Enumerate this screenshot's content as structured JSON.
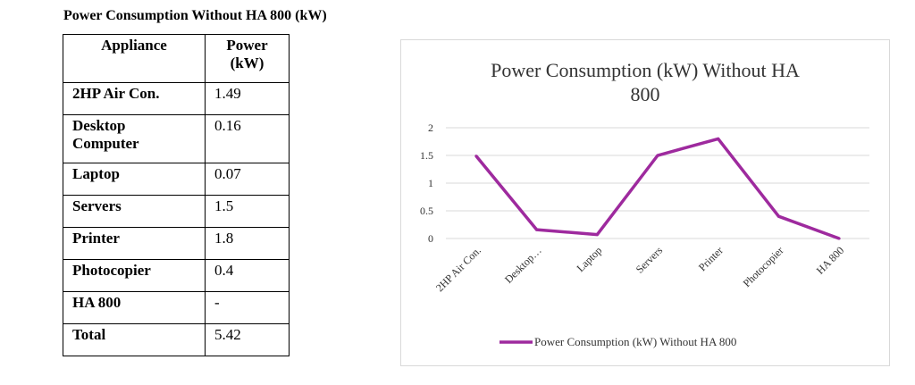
{
  "heading": "Power Consumption Without HA 800 (kW)",
  "table": {
    "headers": [
      "Appliance",
      "Power (kW)"
    ],
    "rows": [
      {
        "name": "2HP Air Con.",
        "value": "1.49"
      },
      {
        "name": "Desktop Computer",
        "value": "0.16"
      },
      {
        "name": "Laptop",
        "value": "0.07"
      },
      {
        "name": "Servers",
        "value": "1.5"
      },
      {
        "name": "Printer",
        "value": "1.8"
      },
      {
        "name": "Photocopier",
        "value": "0.4"
      },
      {
        "name": "HA 800",
        "value": "-"
      }
    ],
    "total_label": "Total",
    "total_value": "5.42"
  },
  "chart_data": {
    "type": "line",
    "title": "Power Consumption (kW) Without HA 800",
    "categories": [
      "2HP Air Con.",
      "Desktop…",
      "Laptop",
      "Servers",
      "Printer",
      "Photocopier",
      "HA 800"
    ],
    "series": [
      {
        "name": "Power Consumption (kW) Without HA 800",
        "values": [
          1.49,
          0.16,
          0.07,
          1.5,
          1.8,
          0.4,
          0
        ],
        "color": "#9e2a9e"
      }
    ],
    "yticks": [
      "0",
      "0.5",
      "1",
      "1.5",
      "2"
    ],
    "ylim": [
      0,
      2
    ],
    "grid": true,
    "legend": "bottom"
  }
}
